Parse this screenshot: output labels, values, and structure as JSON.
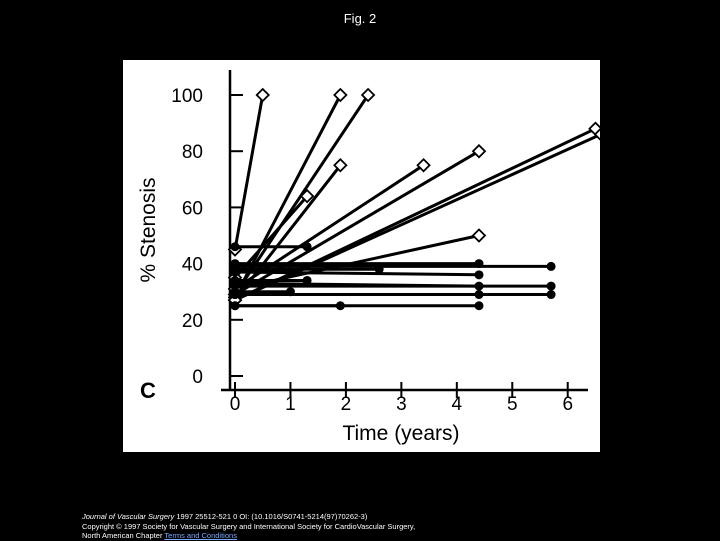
{
  "figure_title": "Fig. 2",
  "citation": {
    "line1_journal": "Journal of Vascular Surgery",
    "line1_rest": " 1997 25512-521 0 OI: (10.1016/S0741-5214(97)70262-3)",
    "line2": "Copyright © 1997 Society for Vascular Surgery and International Society for CardioVascular Surgery,",
    "line3_prefix": "North American Chapter ",
    "line3_link": "Terms and Conditions"
  },
  "chart_data": {
    "type": "line",
    "panel_label": "C",
    "xlabel": "Time (years)",
    "ylabel": "% Stenosis",
    "xlim": [
      0,
      6.6
    ],
    "ylim": [
      0,
      100
    ],
    "xticks": [
      0,
      1,
      2,
      3,
      4,
      5,
      6
    ],
    "yticks": [
      0,
      20,
      40,
      60,
      80,
      100
    ],
    "grid": false,
    "legend": "none",
    "background": "#ffffff",
    "line_color": "#000000",
    "series": [
      {
        "marker": "diamond",
        "points": [
          [
            0.0,
            45
          ],
          [
            0.5,
            100
          ]
        ]
      },
      {
        "marker": "diamond",
        "points": [
          [
            0.0,
            28
          ],
          [
            1.9,
            100
          ]
        ]
      },
      {
        "marker": "diamond",
        "points": [
          [
            0.0,
            29
          ],
          [
            2.4,
            100
          ]
        ]
      },
      {
        "marker": "diamond",
        "points": [
          [
            0.0,
            27
          ],
          [
            1.9,
            75
          ]
        ]
      },
      {
        "marker": "diamond",
        "points": [
          [
            0.0,
            35
          ],
          [
            1.3,
            64
          ]
        ]
      },
      {
        "marker": "diamond",
        "points": [
          [
            0.0,
            31
          ],
          [
            3.4,
            75
          ]
        ]
      },
      {
        "marker": "diamond",
        "points": [
          [
            0.0,
            29
          ],
          [
            4.4,
            80
          ]
        ]
      },
      {
        "marker": "diamond",
        "points": [
          [
            0.0,
            27
          ],
          [
            6.5,
            88
          ]
        ]
      },
      {
        "marker": "diamond",
        "points": [
          [
            0.0,
            27
          ],
          [
            6.6,
            86
          ]
        ]
      },
      {
        "marker": "diamond",
        "points": [
          [
            0.0,
            31
          ],
          [
            4.4,
            50
          ]
        ]
      },
      {
        "marker": "circle",
        "points": [
          [
            0.0,
            46
          ],
          [
            1.3,
            46
          ]
        ]
      },
      {
        "marker": "circle",
        "points": [
          [
            0.0,
            39
          ],
          [
            5.7,
            39
          ]
        ]
      },
      {
        "marker": "circle",
        "points": [
          [
            0.0,
            40
          ],
          [
            4.4,
            40
          ]
        ]
      },
      {
        "marker": "circle",
        "points": [
          [
            0.0,
            38
          ],
          [
            2.6,
            38
          ]
        ]
      },
      {
        "marker": "circle",
        "points": [
          [
            0.0,
            37
          ],
          [
            4.4,
            36
          ]
        ]
      },
      {
        "marker": "circle",
        "points": [
          [
            0.0,
            37
          ],
          [
            1.0,
            37
          ]
        ]
      },
      {
        "marker": "circle",
        "points": [
          [
            0.0,
            33
          ],
          [
            4.4,
            32
          ]
        ]
      },
      {
        "marker": "circle",
        "points": [
          [
            0.0,
            32
          ],
          [
            5.7,
            32
          ]
        ]
      },
      {
        "marker": "circle",
        "points": [
          [
            0.0,
            30
          ],
          [
            1.0,
            30
          ]
        ]
      },
      {
        "marker": "circle",
        "points": [
          [
            0.0,
            29
          ],
          [
            4.4,
            29
          ]
        ]
      },
      {
        "marker": "circle",
        "points": [
          [
            0.0,
            29
          ],
          [
            5.7,
            29
          ]
        ]
      },
      {
        "marker": "circle",
        "points": [
          [
            0.0,
            25
          ],
          [
            1.9,
            25
          ]
        ]
      },
      {
        "marker": "circle",
        "points": [
          [
            0.0,
            25
          ],
          [
            4.4,
            25
          ]
        ]
      },
      {
        "marker": "circle",
        "points": [
          [
            0.0,
            34
          ],
          [
            1.3,
            34
          ]
        ]
      }
    ]
  }
}
